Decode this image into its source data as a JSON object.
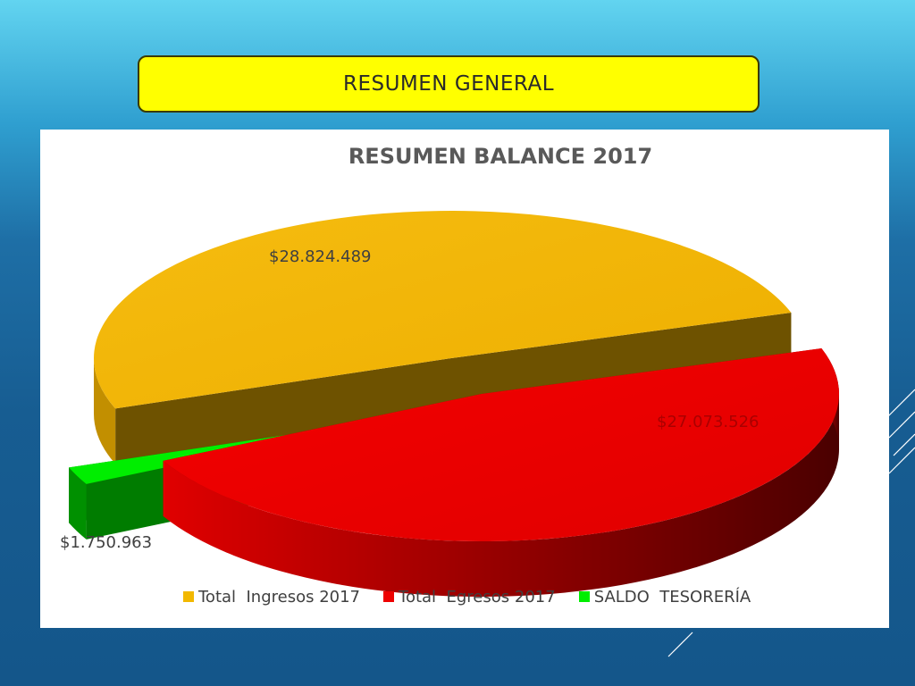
{
  "header": {
    "title": "RESUMEN GENERAL"
  },
  "colors": {
    "ingresos": "#f2b800",
    "egresos": "#ee0000",
    "saldo": "#00ee00"
  },
  "chart_data": {
    "type": "pie",
    "title": "RESUMEN BALANCE 2017",
    "legend_position": "bottom",
    "categories": [
      "Total  Ingresos 2017",
      "Total  Egresos 2017",
      "SALDO  TESORERÍA"
    ],
    "values": [
      28824489,
      27073526,
      1750963
    ],
    "data_labels": [
      "$28.824.489",
      "$27.073.526",
      "$1.750.963"
    ],
    "exploded": true,
    "three_d": true
  }
}
